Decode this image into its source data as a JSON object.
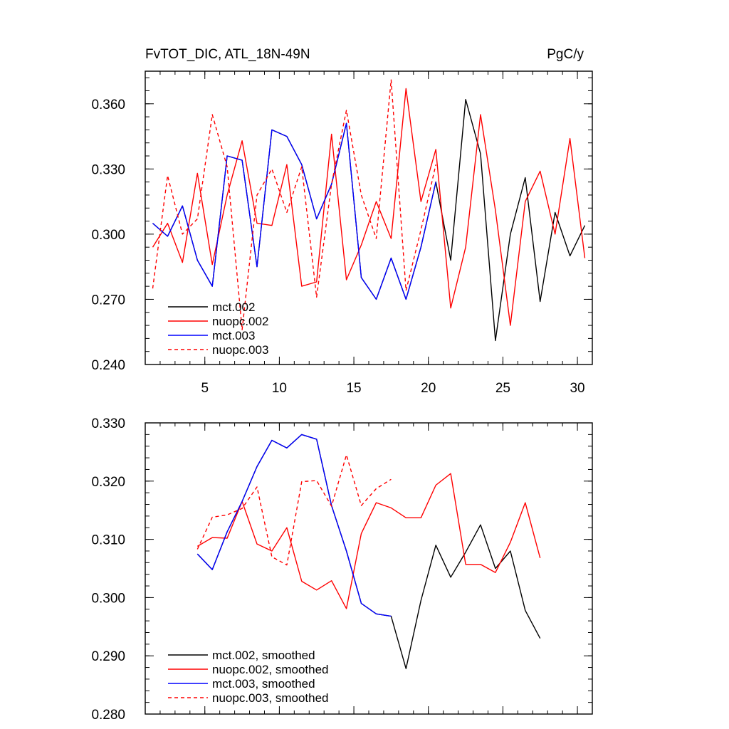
{
  "figure": {
    "title_left": "FvTOT_DIC, ATL_18N-49N",
    "title_right": "PgC/y"
  },
  "chart_data": [
    {
      "type": "line",
      "title": "FvTOT_DIC, ATL_18N-49N",
      "units": "PgC/y",
      "xlim": [
        1,
        31
      ],
      "ylim": [
        0.24,
        0.375
      ],
      "xticks": [
        5,
        10,
        15,
        20,
        25,
        30
      ],
      "xtick_labels": [
        "5",
        "10",
        "15",
        "20",
        "25",
        "30"
      ],
      "yticks": [
        0.24,
        0.27,
        0.3,
        0.33,
        0.36
      ],
      "ytick_labels": [
        "0.240",
        "0.270",
        "0.300",
        "0.330",
        "0.360"
      ],
      "legend_position": "bottom-left",
      "series": [
        {
          "name": "mct.002",
          "color": "#000000",
          "dash": "solid",
          "x": [
            1.5,
            2.5,
            3.5,
            4.5,
            5.5,
            6.5,
            7.5,
            8.5,
            9.5,
            10.5,
            11.5,
            12.5,
            13.5,
            14.5,
            15.5,
            16.5,
            17.5,
            18.5,
            19.5,
            20.5,
            21.5,
            22.5,
            23.5,
            24.5,
            25.5,
            26.5,
            27.5,
            28.5,
            29.5,
            30.5
          ],
          "y": [
            0.305,
            0.299,
            0.313,
            0.288,
            0.276,
            0.336,
            0.334,
            0.285,
            0.348,
            0.345,
            0.332,
            0.307,
            0.323,
            0.351,
            0.28,
            0.27,
            0.289,
            0.27,
            0.294,
            0.324,
            0.288,
            0.362,
            0.337,
            0.251,
            0.3,
            0.326,
            0.269,
            0.31,
            0.29,
            0.304
          ]
        },
        {
          "name": "nuopc.002",
          "color": "#ff0000",
          "dash": "solid",
          "x": [
            1.5,
            2.5,
            3.5,
            4.5,
            5.5,
            6.5,
            7.5,
            8.5,
            9.5,
            10.5,
            11.5,
            12.5,
            13.5,
            14.5,
            15.5,
            16.5,
            17.5,
            18.5,
            19.5,
            20.5,
            21.5,
            22.5,
            23.5,
            24.5,
            25.5,
            26.5,
            27.5,
            28.5,
            29.5,
            30.5
          ],
          "y": [
            0.294,
            0.305,
            0.287,
            0.328,
            0.286,
            0.318,
            0.343,
            0.305,
            0.304,
            0.332,
            0.276,
            0.278,
            0.346,
            0.279,
            0.295,
            0.315,
            0.298,
            0.367,
            0.315,
            0.339,
            0.266,
            0.294,
            0.355,
            0.311,
            0.258,
            0.315,
            0.329,
            0.3,
            0.344,
            0.289
          ]
        },
        {
          "name": "mct.003",
          "color": "#0000ff",
          "dash": "solid",
          "x": [
            1.5,
            2.5,
            3.5,
            4.5,
            5.5,
            6.5,
            7.5,
            8.5,
            9.5,
            10.5,
            11.5,
            12.5,
            13.5,
            14.5,
            15.5,
            16.5,
            17.5,
            18.5,
            19.5,
            20.5
          ],
          "y": [
            0.305,
            0.299,
            0.313,
            0.288,
            0.276,
            0.336,
            0.334,
            0.285,
            0.348,
            0.345,
            0.332,
            0.307,
            0.323,
            0.351,
            0.28,
            0.27,
            0.289,
            0.27,
            0.294,
            0.324
          ]
        },
        {
          "name": "nuopc.003",
          "color": "#ff0000",
          "dash": "dashed",
          "x": [
            1.5,
            2.5,
            3.5,
            4.5,
            5.5,
            6.5,
            7.5,
            8.5,
            9.5,
            10.5,
            11.5,
            12.5,
            13.5,
            14.5,
            15.5,
            16.5,
            17.5,
            18.5,
            19.5,
            20.5
          ],
          "y": [
            0.275,
            0.327,
            0.3,
            0.307,
            0.355,
            0.331,
            0.256,
            0.318,
            0.33,
            0.31,
            0.331,
            0.271,
            0.323,
            0.357,
            0.318,
            0.298,
            0.371,
            0.274,
            0.302,
            0.332
          ]
        }
      ]
    },
    {
      "type": "line",
      "title": "",
      "xlim": [
        1,
        31
      ],
      "ylim": [
        0.28,
        0.33
      ],
      "xticks": [
        5,
        10,
        15,
        20,
        25,
        30
      ],
      "xtick_labels": [],
      "yticks": [
        0.28,
        0.29,
        0.3,
        0.31,
        0.32,
        0.33
      ],
      "ytick_labels": [
        "0.280",
        "0.290",
        "0.300",
        "0.310",
        "0.320",
        "0.330"
      ],
      "legend_position": "bottom-left",
      "series": [
        {
          "name": "mct.002, smoothed",
          "color": "#000000",
          "dash": "solid",
          "x": [
            4.5,
            5.5,
            6.5,
            7.5,
            8.5,
            9.5,
            10.5,
            11.5,
            12.5,
            13.5,
            14.5,
            15.5,
            16.5,
            17.5,
            18.5,
            19.5,
            20.5,
            21.5,
            22.5,
            23.5,
            24.5,
            25.5,
            26.5,
            27.5
          ],
          "y": [
            0.3075,
            0.3048,
            0.3113,
            0.3165,
            0.3225,
            0.327,
            0.3257,
            0.328,
            0.3272,
            0.3158,
            0.308,
            0.299,
            0.2972,
            0.2968,
            0.2878,
            0.2995,
            0.309,
            0.3035,
            0.3078,
            0.3125,
            0.305,
            0.308,
            0.2978,
            0.293
          ]
        },
        {
          "name": "nuopc.002, smoothed",
          "color": "#ff0000",
          "dash": "solid",
          "x": [
            4.5,
            5.5,
            6.5,
            7.5,
            8.5,
            9.5,
            10.5,
            11.5,
            12.5,
            13.5,
            14.5,
            15.5,
            16.5,
            17.5,
            18.5,
            19.5,
            20.5,
            21.5,
            22.5,
            23.5,
            24.5,
            25.5,
            26.5,
            27.5
          ],
          "y": [
            0.3088,
            0.3103,
            0.3102,
            0.3165,
            0.3092,
            0.308,
            0.312,
            0.3028,
            0.3013,
            0.3029,
            0.2981,
            0.311,
            0.3163,
            0.3154,
            0.3137,
            0.3137,
            0.3193,
            0.3213,
            0.3057,
            0.3057,
            0.3043,
            0.3095,
            0.3163,
            0.3068
          ]
        },
        {
          "name": "mct.003, smoothed",
          "color": "#0000ff",
          "dash": "solid",
          "x": [
            4.5,
            5.5,
            6.5,
            7.5,
            8.5,
            9.5,
            10.5,
            11.5,
            12.5,
            13.5,
            14.5,
            15.5,
            16.5,
            17.5
          ],
          "y": [
            0.3075,
            0.3048,
            0.3113,
            0.3165,
            0.3225,
            0.327,
            0.3257,
            0.328,
            0.3272,
            0.3158,
            0.308,
            0.299,
            0.2972,
            0.2968
          ]
        },
        {
          "name": "nuopc.003, smoothed",
          "color": "#ff0000",
          "dash": "dashed",
          "x": [
            4.5,
            5.5,
            6.5,
            7.5,
            8.5,
            9.5,
            10.5,
            11.5,
            12.5,
            13.5,
            14.5,
            15.5,
            16.5,
            17.5
          ],
          "y": [
            0.3083,
            0.3138,
            0.3142,
            0.3153,
            0.319,
            0.307,
            0.3056,
            0.3199,
            0.3201,
            0.3157,
            0.3245,
            0.3158,
            0.3187,
            0.3203
          ]
        }
      ]
    }
  ]
}
